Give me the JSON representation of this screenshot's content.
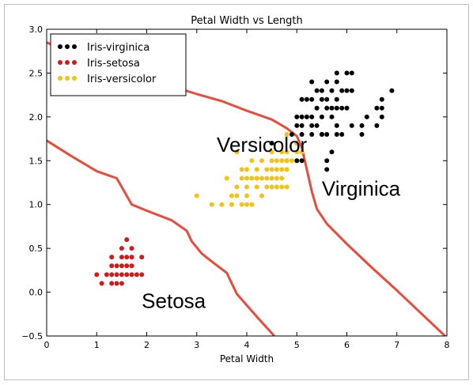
{
  "chart_data": {
    "type": "scatter",
    "title": "Petal Width vs Length",
    "xlabel": "Petal Width",
    "ylabel": "",
    "xlim": [
      0,
      8
    ],
    "ylim": [
      -0.5,
      3.0
    ],
    "xticks": [
      "0",
      "1",
      "2",
      "3",
      "4",
      "5",
      "6",
      "7",
      "8"
    ],
    "yticks": [
      "−0.5",
      "0.0",
      "0.5",
      "1.0",
      "1.5",
      "2.0",
      "2.5",
      "3.0"
    ],
    "grid": false,
    "legend_position": "top-left",
    "series": [
      {
        "name": "Iris-virginica",
        "color": "#000000",
        "points": [
          [
            5.3,
            2.4
          ],
          [
            5.6,
            2.4
          ],
          [
            5.8,
            2.4
          ],
          [
            6.0,
            2.5
          ],
          [
            6.1,
            2.5
          ],
          [
            5.8,
            2.5
          ],
          [
            5.7,
            2.3
          ],
          [
            6.0,
            2.3
          ],
          [
            6.1,
            2.3
          ],
          [
            6.9,
            2.3
          ],
          [
            5.4,
            2.3
          ],
          [
            5.5,
            2.3
          ],
          [
            6.7,
            2.2
          ],
          [
            5.1,
            2.2
          ],
          [
            5.6,
            2.2
          ],
          [
            6.4,
            2.0
          ],
          [
            6.6,
            2.1
          ],
          [
            6.7,
            2.1
          ],
          [
            5.0,
            2.0
          ],
          [
            5.7,
            2.0
          ],
          [
            5.1,
            2.0
          ],
          [
            5.2,
            2.0
          ],
          [
            5.5,
            2.0
          ],
          [
            4.9,
            1.8
          ],
          [
            5.5,
            1.8
          ],
          [
            6.1,
            1.9
          ],
          [
            6.3,
            1.8
          ],
          [
            6.7,
            2.0
          ],
          [
            5.8,
            2.2
          ],
          [
            5.9,
            2.3
          ],
          [
            5.9,
            2.1
          ],
          [
            6.0,
            2.1
          ],
          [
            5.4,
            2.1
          ],
          [
            5.7,
            2.1
          ],
          [
            5.8,
            2.1
          ],
          [
            5.6,
            2.1
          ],
          [
            5.3,
            1.9
          ],
          [
            5.1,
            1.9
          ],
          [
            5.0,
            1.9
          ],
          [
            5.6,
            1.8
          ],
          [
            5.5,
            1.8
          ],
          [
            5.8,
            1.8
          ],
          [
            5.1,
            1.8
          ],
          [
            5.3,
            1.8
          ],
          [
            5.0,
            1.5
          ],
          [
            5.1,
            1.5
          ],
          [
            5.6,
            1.4
          ],
          [
            5.7,
            1.6
          ],
          [
            5.6,
            1.5
          ],
          [
            5.3,
            2.0
          ],
          [
            5.0,
            1.7
          ],
          [
            5.5,
            2.2
          ],
          [
            5.2,
            2.2
          ],
          [
            5.4,
            1.9
          ],
          [
            4.5,
            1.7
          ],
          [
            6.6,
            1.9
          ],
          [
            6.3,
            1.9
          ],
          [
            5.9,
            1.8
          ],
          [
            5.3,
            2.2
          ],
          [
            5.8,
            1.9
          ]
        ]
      },
      {
        "name": "Iris-setosa",
        "color": "#cc1c1c",
        "points": [
          [
            1.6,
            0.6
          ],
          [
            1.5,
            0.5
          ],
          [
            1.7,
            0.5
          ],
          [
            1.3,
            0.4
          ],
          [
            1.5,
            0.4
          ],
          [
            1.6,
            0.4
          ],
          [
            1.7,
            0.4
          ],
          [
            1.9,
            0.4
          ],
          [
            1.3,
            0.3
          ],
          [
            1.4,
            0.3
          ],
          [
            1.5,
            0.3
          ],
          [
            1.6,
            0.3
          ],
          [
            1.7,
            0.3
          ],
          [
            1.2,
            0.2
          ],
          [
            1.3,
            0.2
          ],
          [
            1.4,
            0.2
          ],
          [
            1.5,
            0.2
          ],
          [
            1.6,
            0.2
          ],
          [
            1.7,
            0.2
          ],
          [
            1.8,
            0.2
          ],
          [
            1.9,
            0.2
          ],
          [
            1.0,
            0.2
          ],
          [
            1.1,
            0.1
          ],
          [
            1.4,
            0.1
          ],
          [
            1.5,
            0.1
          ],
          [
            1.3,
            0.1
          ]
        ]
      },
      {
        "name": "Iris-versicolor",
        "color": "#f2c316",
        "points": [
          [
            4.8,
            1.8
          ],
          [
            5.0,
            1.7
          ],
          [
            4.7,
            1.6
          ],
          [
            4.8,
            1.6
          ],
          [
            4.5,
            1.6
          ],
          [
            5.1,
            1.6
          ],
          [
            4.1,
            1.5
          ],
          [
            4.5,
            1.5
          ],
          [
            4.6,
            1.5
          ],
          [
            4.7,
            1.5
          ],
          [
            4.8,
            1.5
          ],
          [
            4.9,
            1.5
          ],
          [
            4.0,
            1.4
          ],
          [
            4.4,
            1.4
          ],
          [
            4.5,
            1.4
          ],
          [
            4.6,
            1.4
          ],
          [
            4.7,
            1.4
          ],
          [
            4.8,
            1.4
          ],
          [
            3.6,
            1.3
          ],
          [
            3.9,
            1.3
          ],
          [
            4.0,
            1.3
          ],
          [
            4.1,
            1.3
          ],
          [
            4.2,
            1.3
          ],
          [
            4.3,
            1.3
          ],
          [
            4.4,
            1.3
          ],
          [
            4.5,
            1.3
          ],
          [
            4.6,
            1.3
          ],
          [
            4.7,
            1.3
          ],
          [
            3.8,
            1.2
          ],
          [
            4.0,
            1.2
          ],
          [
            4.2,
            1.2
          ],
          [
            4.4,
            1.2
          ],
          [
            4.5,
            1.2
          ],
          [
            4.6,
            1.2
          ],
          [
            4.7,
            1.2
          ],
          [
            4.8,
            1.2
          ],
          [
            3.0,
            1.1
          ],
          [
            3.7,
            1.1
          ],
          [
            3.8,
            1.1
          ],
          [
            4.0,
            1.1
          ],
          [
            4.3,
            1.1
          ],
          [
            3.3,
            1.0
          ],
          [
            3.5,
            1.0
          ],
          [
            3.7,
            1.0
          ],
          [
            3.9,
            1.0
          ],
          [
            4.0,
            1.0
          ],
          [
            4.1,
            1.0
          ],
          [
            3.8,
            1.6
          ],
          [
            3.9,
            1.4
          ],
          [
            4.3,
            1.5
          ],
          [
            5.0,
            1.6
          ],
          [
            4.2,
            1.4
          ]
        ]
      }
    ],
    "boundaries": [
      {
        "color": "#e74c3c",
        "points": [
          [
            0,
            2.85
          ],
          [
            0.5,
            2.72
          ],
          [
            1.0,
            2.6
          ],
          [
            1.5,
            2.5
          ],
          [
            2.0,
            2.42
          ],
          [
            2.5,
            2.35
          ],
          [
            3.0,
            2.26
          ],
          [
            3.5,
            2.18
          ],
          [
            4.0,
            2.07
          ],
          [
            4.5,
            1.97
          ],
          [
            4.8,
            1.87
          ],
          [
            5.0,
            1.78
          ],
          [
            5.1,
            1.65
          ],
          [
            5.2,
            1.4
          ],
          [
            5.3,
            1.15
          ],
          [
            5.4,
            0.95
          ],
          [
            5.6,
            0.78
          ],
          [
            6.0,
            0.55
          ],
          [
            6.5,
            0.28
          ],
          [
            7.0,
            0.02
          ],
          [
            7.5,
            -0.25
          ],
          [
            8.0,
            -0.52
          ]
        ]
      },
      {
        "color": "#e74c3c",
        "points": [
          [
            0,
            1.73
          ],
          [
            0.5,
            1.55
          ],
          [
            1.0,
            1.38
          ],
          [
            1.4,
            1.3
          ],
          [
            1.6,
            1.1
          ],
          [
            1.7,
            1.0
          ],
          [
            2.0,
            0.93
          ],
          [
            2.5,
            0.82
          ],
          [
            2.8,
            0.7
          ],
          [
            2.9,
            0.58
          ],
          [
            3.1,
            0.44
          ],
          [
            3.3,
            0.35
          ],
          [
            3.6,
            0.22
          ],
          [
            3.8,
            -0.02
          ],
          [
            4.2,
            -0.28
          ],
          [
            4.55,
            -0.5
          ]
        ]
      }
    ],
    "annotations": [
      {
        "text": "Versicolor",
        "x": 3.4,
        "y": 1.6
      },
      {
        "text": "Virginica",
        "x": 5.5,
        "y": 1.1
      },
      {
        "text": "Setosa",
        "x": 1.9,
        "y": -0.18
      }
    ]
  }
}
